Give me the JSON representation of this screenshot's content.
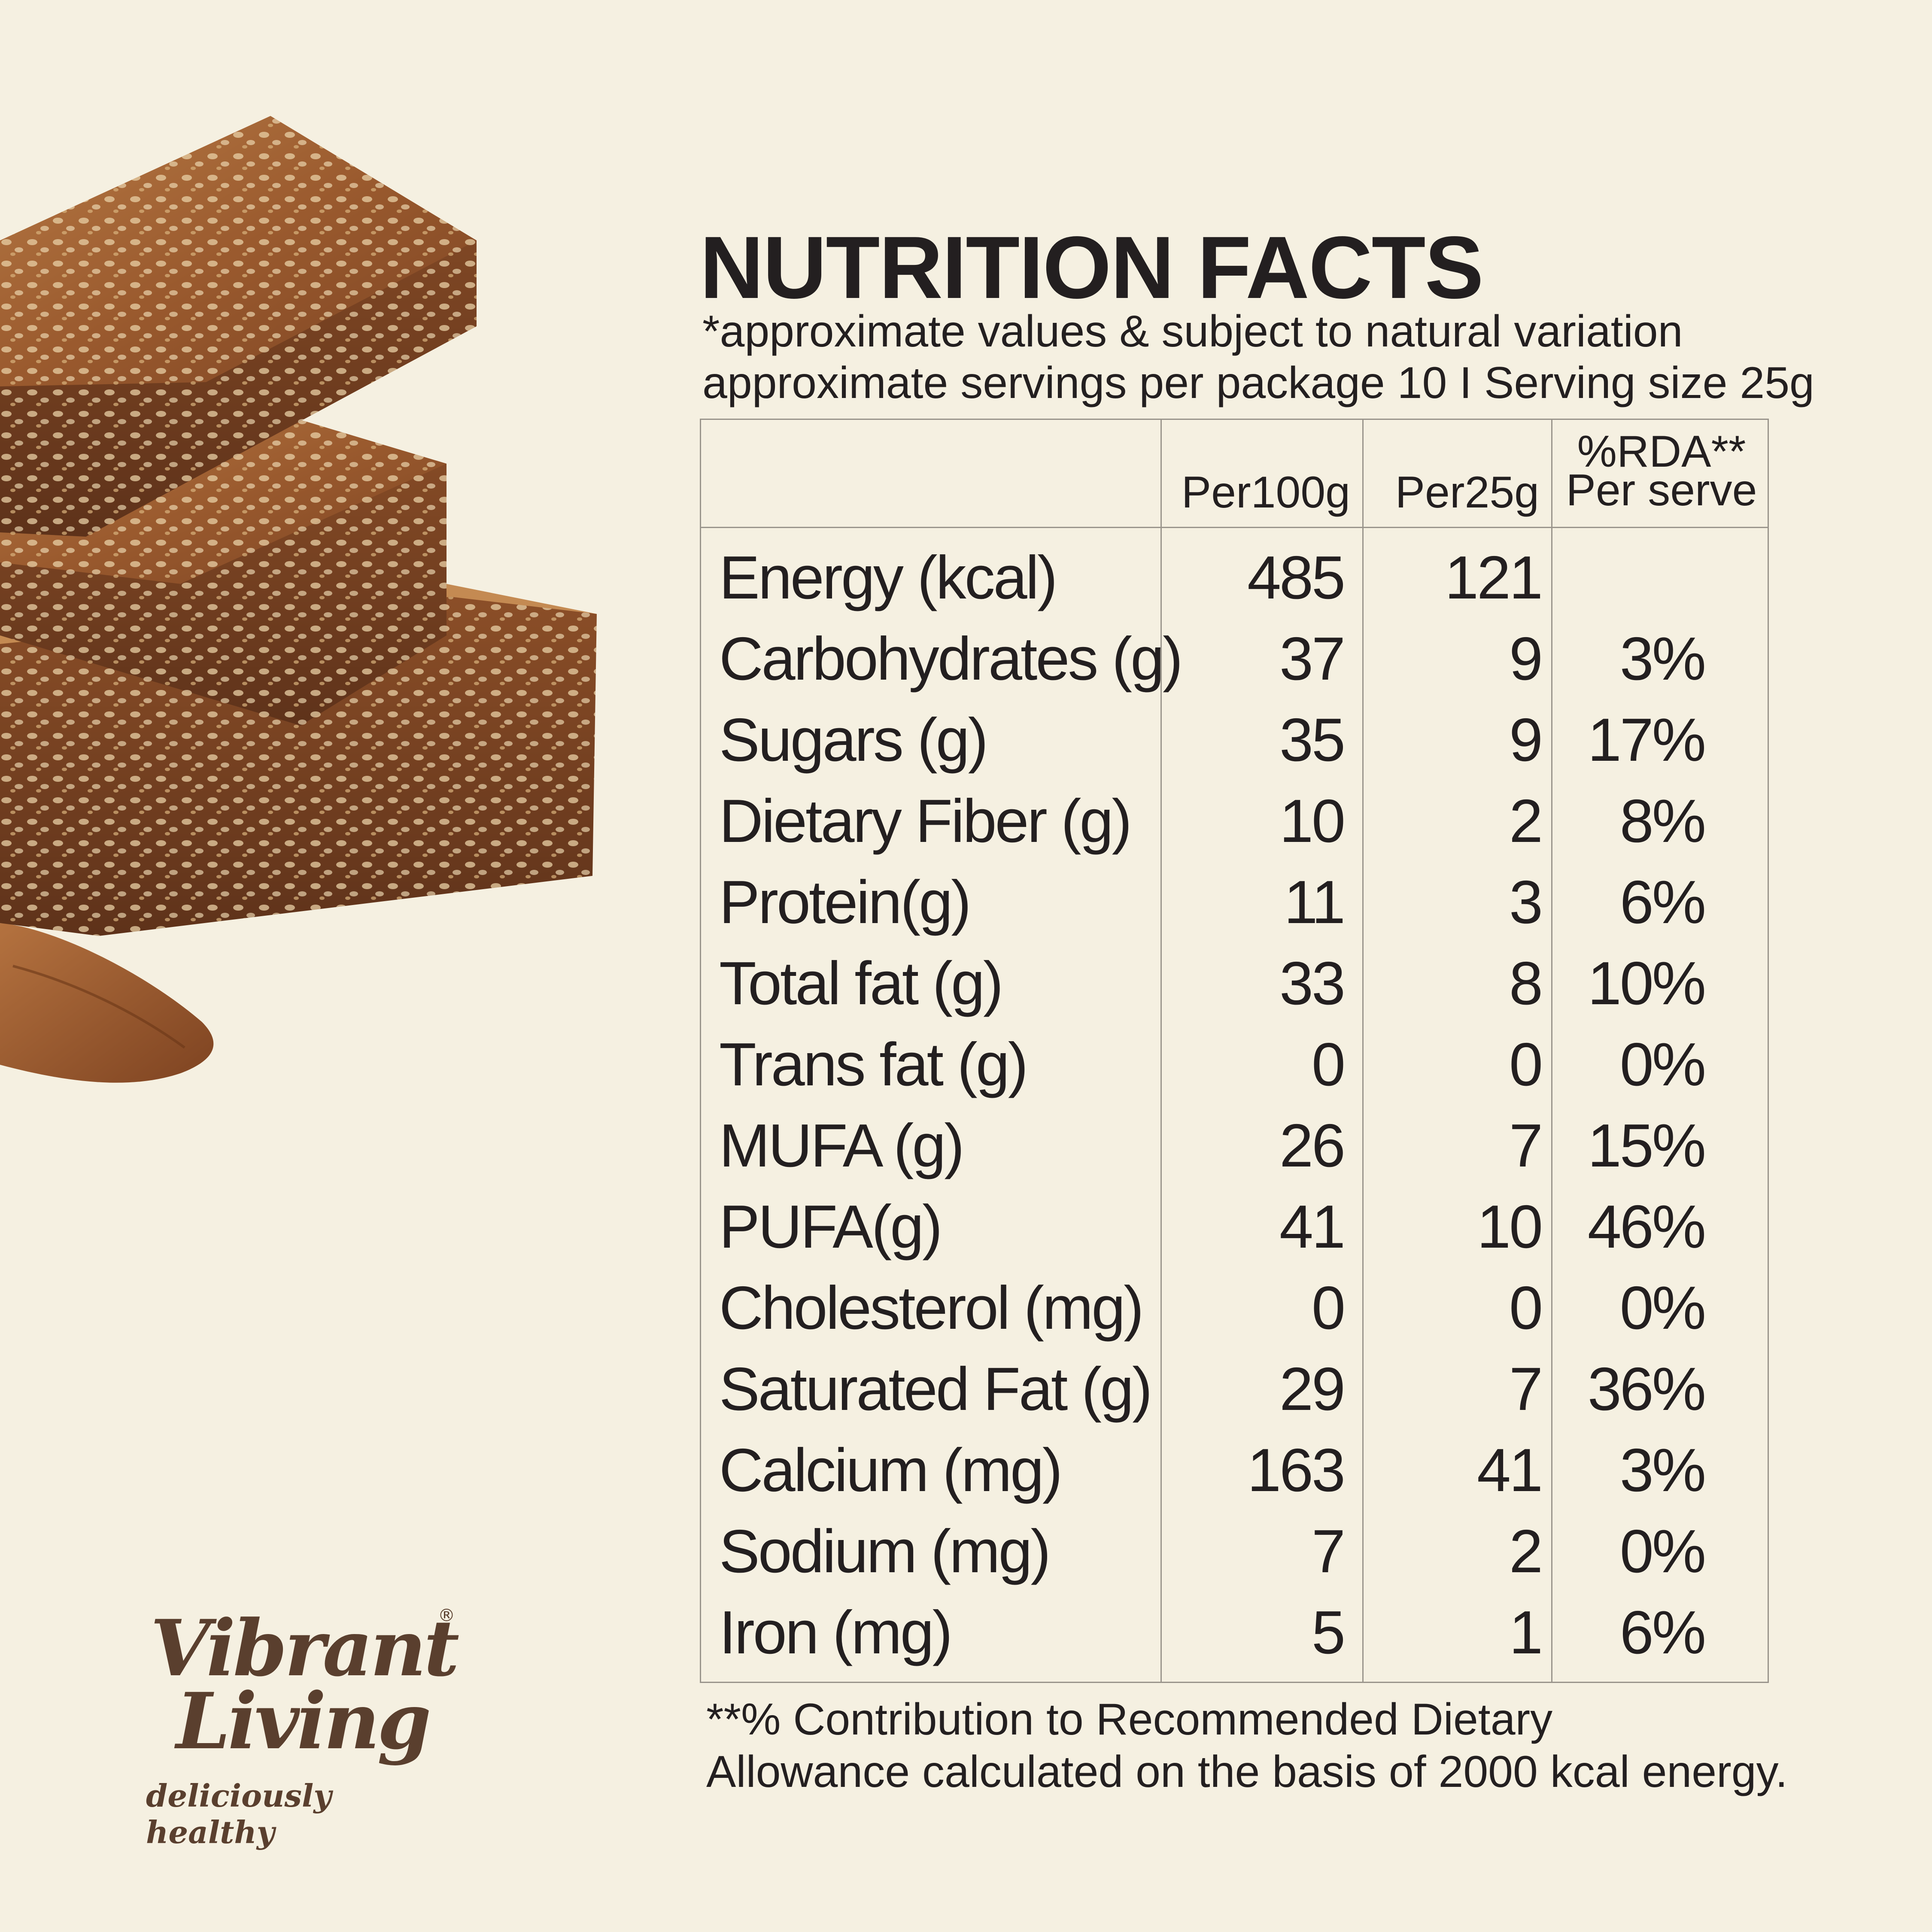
{
  "header": {
    "title": "NUTRITION FACTS",
    "subtitle": "*approximate values & subject to natural variation",
    "serving": "approximate servings per package 10 I Serving size 25g"
  },
  "table": {
    "columns": {
      "per100": "Per100g",
      "per25": "Per25g",
      "rda_line1": "%RDA**",
      "rda_line2": "Per serve"
    },
    "rows": [
      {
        "label": "Energy (kcal)",
        "per100": "485",
        "per25": "121",
        "rda": ""
      },
      {
        "label": "Carbohydrates (g)",
        "per100": "37",
        "per25": "9",
        "rda": "3%"
      },
      {
        "label": "Sugars (g)",
        "per100": "35",
        "per25": "9",
        "rda": "17%"
      },
      {
        "label": "Dietary Fiber (g)",
        "per100": "10",
        "per25": "2",
        "rda": "8%"
      },
      {
        "label": "Protein(g)",
        "per100": "11",
        "per25": "3",
        "rda": "6%"
      },
      {
        "label": "Total fat (g)",
        "per100": "33",
        "per25": "8",
        "rda": "10%"
      },
      {
        "label": "Trans fat (g)",
        "per100": "0",
        "per25": "0",
        "rda": "0%"
      },
      {
        "label": "MUFA (g)",
        "per100": "26",
        "per25": "7",
        "rda": "15%"
      },
      {
        "label": "PUFA(g)",
        "per100": "41",
        "per25": "10",
        "rda": "46%"
      },
      {
        "label": "Cholesterol (mg)",
        "per100": "0",
        "per25": "0",
        "rda": "0%"
      },
      {
        "label": "Saturated Fat (g)",
        "per100": "29",
        "per25": "7",
        "rda": "36%"
      },
      {
        "label": "Calcium (mg)",
        "per100": "163",
        "per25": "41",
        "rda": "3%"
      },
      {
        "label": "Sodium (mg)",
        "per100": "7",
        "per25": "2",
        "rda": "0%"
      },
      {
        "label": "Iron (mg)",
        "per100": "5",
        "per25": "1",
        "rda": "6%"
      }
    ]
  },
  "footnote": {
    "line1": "**% Contribution to Recommended Dietary",
    "line2": "Allowance calculated on the basis of 2000 kcal energy."
  },
  "brand": {
    "name_line1": "Vibrant",
    "name_line2": "Living",
    "registered": "®",
    "tagline": "deliciously healthy"
  },
  "colors": {
    "background": "#f5f0e1",
    "text": "#231f20",
    "brand": "#5a3f2e",
    "table_lines": "#9a958c"
  }
}
